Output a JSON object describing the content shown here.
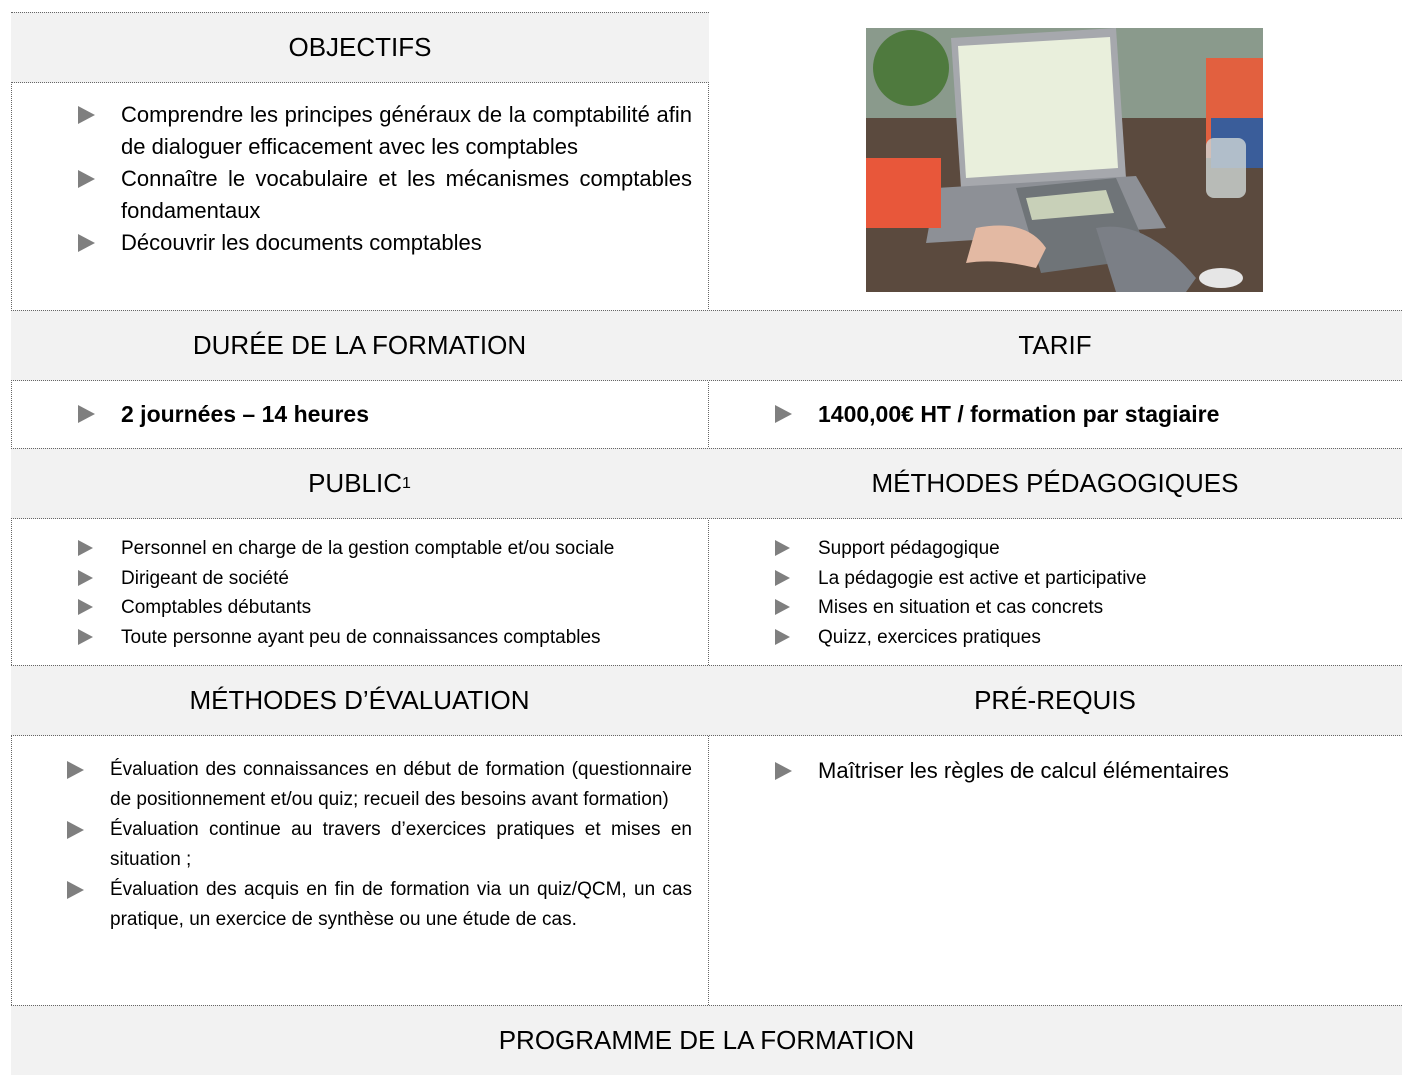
{
  "objectifs": {
    "title": "OBJECTIFS",
    "items": [
      "Comprendre les principes généraux de la comptabilité afin de dialoguer efficacement avec les comptables",
      "Connaître le vocabulaire et les mécanismes comptables fondamentaux",
      "Découvrir les documents comptables"
    ]
  },
  "duree": {
    "title": "DURÉE DE LA FORMATION",
    "items": [
      "2 journées – 14 heures"
    ]
  },
  "tarif": {
    "title": "TARIF",
    "items": [
      "1400,00€ HT / formation par stagiaire"
    ]
  },
  "public": {
    "title": "PUBLIC",
    "footnote_mark": "1",
    "items": [
      "Personnel en charge de la gestion comptable et/ou sociale",
      "Dirigeant de société",
      "Comptables débutants",
      "Toute personne ayant peu de connaissances comptables"
    ]
  },
  "methodes_pedagogiques": {
    "title": "MÉTHODES PÉDAGOGIQUES",
    "items": [
      "Support pédagogique",
      "La pédagogie est active et participative",
      "Mises en situation et cas concrets",
      "Quizz, exercices pratiques"
    ]
  },
  "methodes_evaluation": {
    "title": "MÉTHODES D’ÉVALUATION",
    "items": [
      "Évaluation des connaissances en début de formation (questionnaire de positionnement et/ou quiz; recueil des besoins avant formation)",
      "Évaluation continue au travers d’exercices pratiques et mises en situation ;",
      "Évaluation des acquis en fin de formation via un quiz/QCM, un cas pratique, un exercice de synthèse ou une étude de cas."
    ]
  },
  "prerequis": {
    "title": "PRÉ-REQUIS",
    "items": [
      "Maîtriser les règles de calcul élémentaires"
    ]
  },
  "programme": {
    "title": "PROGRAMME DE LA FORMATION"
  }
}
